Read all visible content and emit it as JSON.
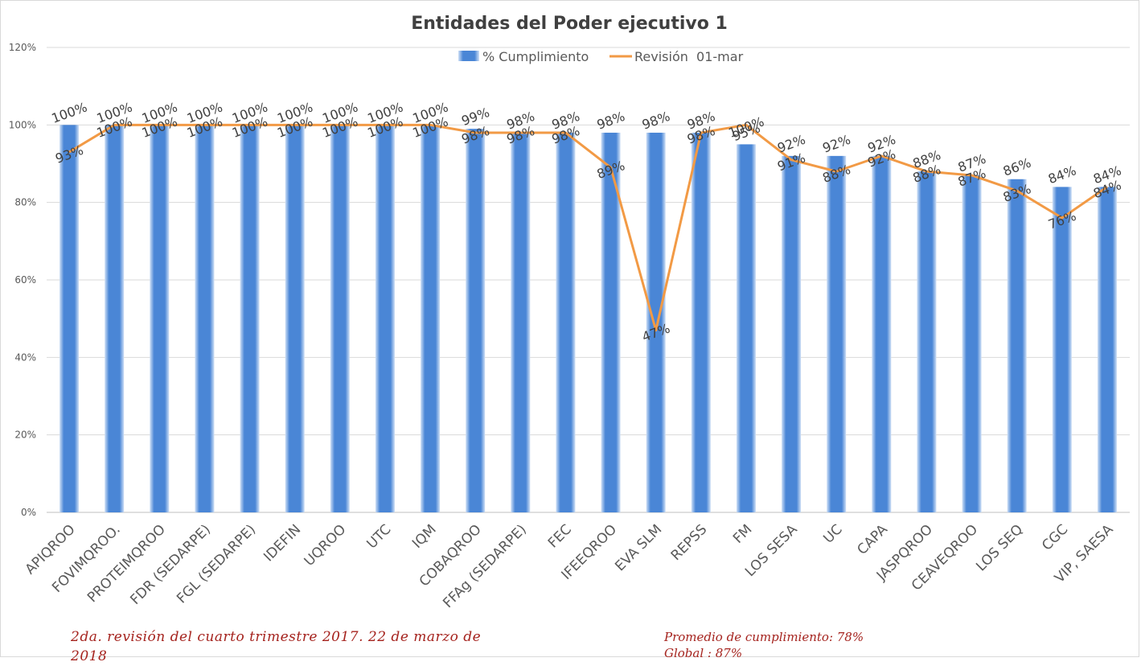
{
  "chart_data": {
    "type": "bar",
    "title": "Entidades del Poder ejecutivo 1",
    "categories": [
      "APIQROO",
      "FOVIMQROO.",
      "PROTEIMQROO",
      "FDR (SEDARPE)",
      "FGL (SEDARPE)",
      "IDEFIN",
      "UQROO",
      "UTC",
      "IQM",
      "COBAQROO",
      "FFAg (SEDARPE)",
      "FEC",
      "IFEEQROO",
      "EVA SLM",
      "REPSS",
      "FM",
      "LOS SESA",
      "UC",
      "CAPA",
      "JASPQROO",
      "CEAVEQROO",
      "LOS SEQ",
      "CGC",
      "VIP, SAESA"
    ],
    "series": [
      {
        "name": "% Cumplimiento",
        "type": "bar",
        "color": "#4a86d6",
        "values": [
          100,
          100,
          100,
          100,
          100,
          100,
          100,
          100,
          100,
          99,
          98,
          98,
          98,
          98,
          98,
          95,
          92,
          92,
          92,
          88,
          87,
          86,
          84,
          84
        ],
        "labels": [
          "100%",
          "100%",
          "100%",
          "100%",
          "100%",
          "100%",
          "100%",
          "100%",
          "100%",
          "99%",
          "98%",
          "98%",
          "98%",
          "98%",
          "98%",
          "95%",
          "92%",
          "92%",
          "92%",
          "88%",
          "87%",
          "86%",
          "84%",
          "84%"
        ]
      },
      {
        "name": "Revisión  01-mar",
        "type": "line",
        "color": "#f29a45",
        "values": [
          93,
          100,
          100,
          100,
          100,
          100,
          100,
          100,
          100,
          98,
          98,
          98,
          89,
          47,
          98,
          100,
          91,
          88,
          92,
          88,
          87,
          83,
          76,
          84
        ],
        "labels": [
          "93%",
          "100%",
          "100%",
          "100%",
          "100%",
          "100%",
          "100%",
          "100%",
          "100%",
          "98%",
          "98%",
          "98%",
          "89%",
          "47%",
          "98%",
          "100%",
          "91%",
          "88%",
          "92%",
          "88%",
          "87%",
          "83%",
          "76%",
          "84%"
        ]
      }
    ],
    "ylim": [
      0,
      120
    ],
    "yticks": [
      "0%",
      "20%",
      "40%",
      "60%",
      "80%",
      "100%",
      "120%"
    ],
    "grid": true,
    "legend": "top-center"
  },
  "footnote_left": "2da. revisión del cuarto trimestre 2017.     22 de marzo de 2018",
  "footnote_right_line1": "Promedio de cumplimiento: 78%",
  "footnote_right_line2": "Global : 87%"
}
